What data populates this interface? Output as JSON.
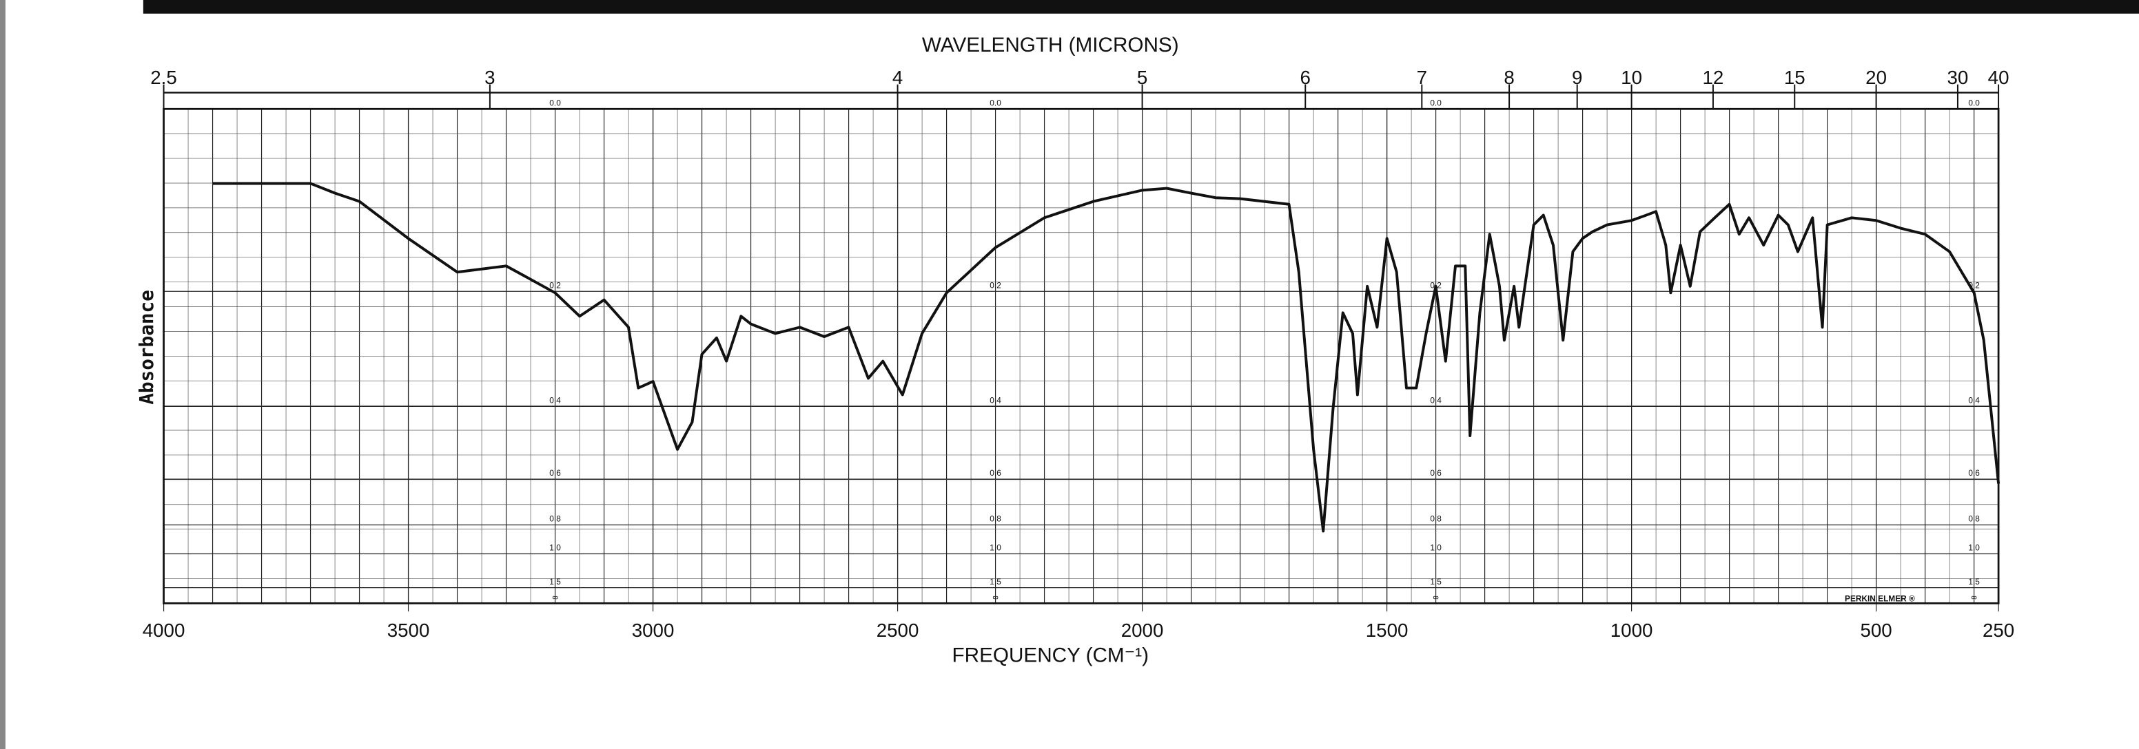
{
  "chart_data": {
    "type": "line",
    "xlabel": "FREQUENCY (CM⁻¹)",
    "x2label": "WAVELENGTH (MICRONS)",
    "ylabel": "Absorbance",
    "note": "PERKIN ELMER ®",
    "xlim": [
      4000,
      250
    ],
    "xticks": [
      4000,
      3500,
      3000,
      2500,
      2000,
      1500,
      1000,
      500,
      250
    ],
    "x2lim": [
      2.5,
      40
    ],
    "x2ticks": [
      2.5,
      3,
      4,
      5,
      6,
      7,
      8,
      9,
      10,
      12,
      15,
      20,
      30,
      40
    ],
    "yscale": "transmittance",
    "ylim": [
      0,
      null
    ],
    "yticks": [
      {
        "value": 0,
        "label": "0.0"
      },
      0.2,
      0.4,
      0.6,
      0.8,
      {
        "value": 1,
        "label": "1.0"
      },
      1.5,
      {
        "value": null,
        "label": "∞"
      }
    ],
    "grid": true,
    "color": "#111111",
    "x": [
      3900,
      3800,
      3700,
      3650,
      3600,
      3500,
      3400,
      3300,
      3200,
      3150,
      3100,
      3050,
      3030,
      3000,
      2950,
      2920,
      2900,
      2870,
      2850,
      2820,
      2800,
      2750,
      2700,
      2650,
      2600,
      2560,
      2530,
      2490,
      2450,
      2400,
      2300,
      2200,
      2100,
      2000,
      1950,
      1900,
      1850,
      1800,
      1700,
      1680,
      1650,
      1630,
      1610,
      1590,
      1570,
      1560,
      1540,
      1520,
      1500,
      1480,
      1460,
      1440,
      1420,
      1400,
      1380,
      1360,
      1340,
      1330,
      1310,
      1290,
      1270,
      1260,
      1240,
      1230,
      1200,
      1180,
      1160,
      1140,
      1120,
      1100,
      1080,
      1050,
      1000,
      970,
      950,
      930,
      920,
      900,
      880,
      860,
      830,
      800,
      780,
      760,
      730,
      700,
      680,
      660,
      630,
      610,
      600,
      550,
      500,
      450,
      400,
      350,
      300,
      280,
      250
    ],
    "values": [
      0.071,
      0.071,
      0.071,
      0.081,
      0.09,
      0.132,
      0.174,
      0.166,
      0.202,
      0.236,
      0.212,
      0.253,
      0.361,
      0.348,
      0.507,
      0.436,
      0.298,
      0.27,
      0.31,
      0.236,
      0.248,
      0.263,
      0.253,
      0.268,
      0.253,
      0.342,
      0.31,
      0.375,
      0.263,
      0.202,
      0.143,
      0.108,
      0.09,
      0.078,
      0.076,
      0.081,
      0.086,
      0.087,
      0.093,
      0.174,
      0.507,
      0.836,
      0.405,
      0.231,
      0.263,
      0.375,
      0.193,
      0.253,
      0.132,
      0.174,
      0.361,
      0.361,
      0.263,
      0.193,
      0.31,
      0.166,
      0.166,
      0.47,
      0.231,
      0.127,
      0.193,
      0.274,
      0.193,
      0.253,
      0.116,
      0.105,
      0.14,
      0.274,
      0.148,
      0.132,
      0.124,
      0.116,
      0.111,
      0.105,
      0.101,
      0.14,
      0.202,
      0.14,
      0.193,
      0.124,
      0.108,
      0.093,
      0.127,
      0.108,
      0.14,
      0.105,
      0.116,
      0.148,
      0.108,
      0.253,
      0.116,
      0.108,
      0.111,
      0.12,
      0.127,
      0.148,
      0.202,
      0.274,
      0.616
    ]
  }
}
